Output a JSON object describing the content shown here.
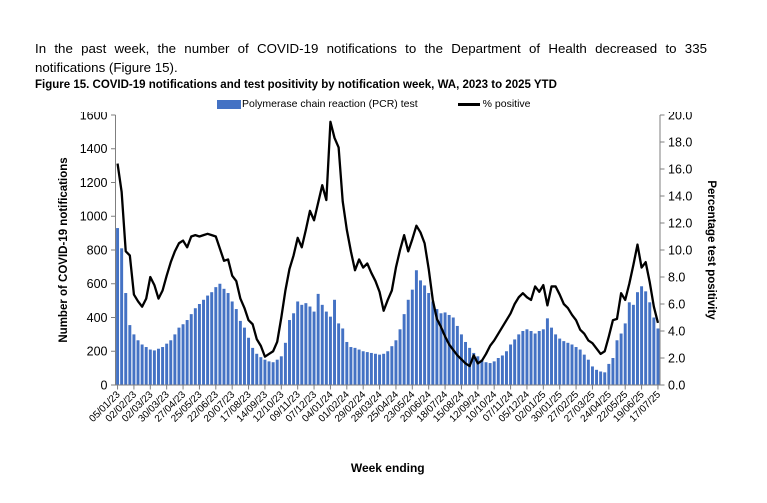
{
  "page": {
    "intro_text": "In the past week, the number of COVID-19 notifications to the Department of Health decreased to 335 notifications (Figure 15).",
    "figure_caption": "Figure 15. COVID-19 notifications and test positivity by notification week, WA, 2023 to 2025 YTD"
  },
  "chart_data": {
    "type": "bar",
    "combo": "weekly bars (left axis) with overlaid line (right axis)",
    "title": "Figure 15. COVID-19 notifications and test positivity by notification week, WA, 2023 to 2025 YTD",
    "x_axis_title": "Week ending",
    "y_left": {
      "label": "Number of COVID-19 notifications",
      "min": 0,
      "max": 1600,
      "step": 200
    },
    "y_right": {
      "label": "Percentage test positivity",
      "min": 0.0,
      "max": 20.0,
      "step": 2.0
    },
    "grid": false,
    "legend_position": "top-center",
    "legend": [
      {
        "label": "Polymerase chain reaction (PCR) test",
        "type": "bar",
        "color": "#4472C4"
      },
      {
        "label": "% positive",
        "type": "line",
        "color": "#000000"
      }
    ],
    "axis_color": "#7f7f7f",
    "n_points": 133,
    "weeks_per_tick": 4,
    "x_tick_labels": [
      "05/01/23",
      "02/02/23",
      "02/03/23",
      "30/03/23",
      "27/04/23",
      "25/05/23",
      "22/06/23",
      "20/07/23",
      "17/08/23",
      "14/09/23",
      "12/10/23",
      "09/11/23",
      "07/12/23",
      "04/01/24",
      "01/02/24",
      "29/02/24",
      "28/03/24",
      "25/04/24",
      "23/05/24",
      "20/06/24",
      "18/07/24",
      "15/08/24",
      "12/09/24",
      "10/10/24",
      "07/11/24",
      "05/12/24",
      "02/01/25",
      "30/01/25",
      "27/02/25",
      "27/03/25",
      "24/04/25",
      "22/05/25",
      "19/06/25",
      "17/07/25"
    ],
    "series": [
      {
        "name": "Polymerase chain reaction (PCR) test",
        "type": "bar",
        "axis": "left",
        "values": [
          930,
          810,
          545,
          355,
          300,
          265,
          240,
          225,
          210,
          205,
          215,
          225,
          245,
          265,
          300,
          340,
          360,
          385,
          420,
          455,
          480,
          505,
          530,
          550,
          580,
          600,
          570,
          545,
          495,
          450,
          380,
          340,
          280,
          220,
          185,
          165,
          150,
          140,
          135,
          150,
          170,
          250,
          385,
          425,
          495,
          475,
          485,
          465,
          435,
          540,
          475,
          435,
          405,
          505,
          365,
          335,
          255,
          225,
          220,
          210,
          200,
          195,
          190,
          185,
          180,
          185,
          200,
          230,
          265,
          330,
          420,
          505,
          565,
          680,
          620,
          590,
          545,
          495,
          450,
          425,
          430,
          415,
          400,
          350,
          300,
          255,
          220,
          190,
          170,
          150,
          135,
          130,
          140,
          160,
          175,
          200,
          240,
          270,
          300,
          320,
          330,
          320,
          305,
          320,
          330,
          395,
          340,
          300,
          275,
          260,
          250,
          240,
          225,
          210,
          180,
          150,
          110,
          90,
          80,
          75,
          125,
          160,
          265,
          305,
          365,
          490,
          475,
          550,
          585,
          555,
          490,
          400,
          335
        ]
      },
      {
        "name": "% positive",
        "type": "line",
        "axis": "right",
        "values": [
          16.4,
          14.3,
          9.9,
          9.6,
          6.7,
          6.2,
          5.8,
          6.4,
          8.0,
          7.4,
          6.4,
          7.0,
          8.1,
          9.1,
          9.9,
          10.5,
          10.7,
          10.2,
          11.0,
          11.1,
          11.0,
          11.1,
          11.2,
          11.1,
          11.0,
          10.1,
          9.2,
          9.3,
          8.1,
          7.7,
          6.4,
          5.7,
          4.8,
          4.5,
          3.4,
          2.9,
          2.1,
          2.3,
          2.5,
          3.2,
          5.0,
          7.0,
          8.6,
          9.6,
          10.9,
          10.2,
          11.5,
          12.9,
          12.2,
          13.5,
          14.8,
          13.7,
          19.5,
          18.3,
          17.6,
          13.6,
          11.5,
          9.9,
          8.5,
          9.3,
          8.7,
          9.0,
          8.3,
          7.7,
          6.9,
          5.5,
          6.3,
          7.0,
          8.7,
          10.0,
          11.1,
          9.9,
          10.8,
          11.8,
          11.3,
          10.5,
          8.6,
          6.3,
          4.9,
          4.3,
          3.6,
          3.0,
          2.6,
          2.2,
          1.9,
          1.6,
          1.4,
          2.2,
          1.6,
          1.8,
          2.3,
          2.9,
          3.3,
          3.8,
          4.3,
          4.8,
          5.3,
          6.0,
          6.5,
          6.8,
          6.5,
          6.3,
          7.3,
          6.9,
          7.4,
          5.9,
          7.3,
          7.3,
          6.7,
          6.0,
          5.7,
          5.2,
          4.8,
          4.1,
          3.8,
          3.3,
          3.1,
          2.7,
          2.3,
          2.5,
          3.6,
          4.8,
          4.9,
          6.8,
          6.3,
          7.5,
          8.9,
          10.4,
          8.7,
          9.1,
          7.6,
          5.8,
          4.6
        ]
      }
    ]
  }
}
